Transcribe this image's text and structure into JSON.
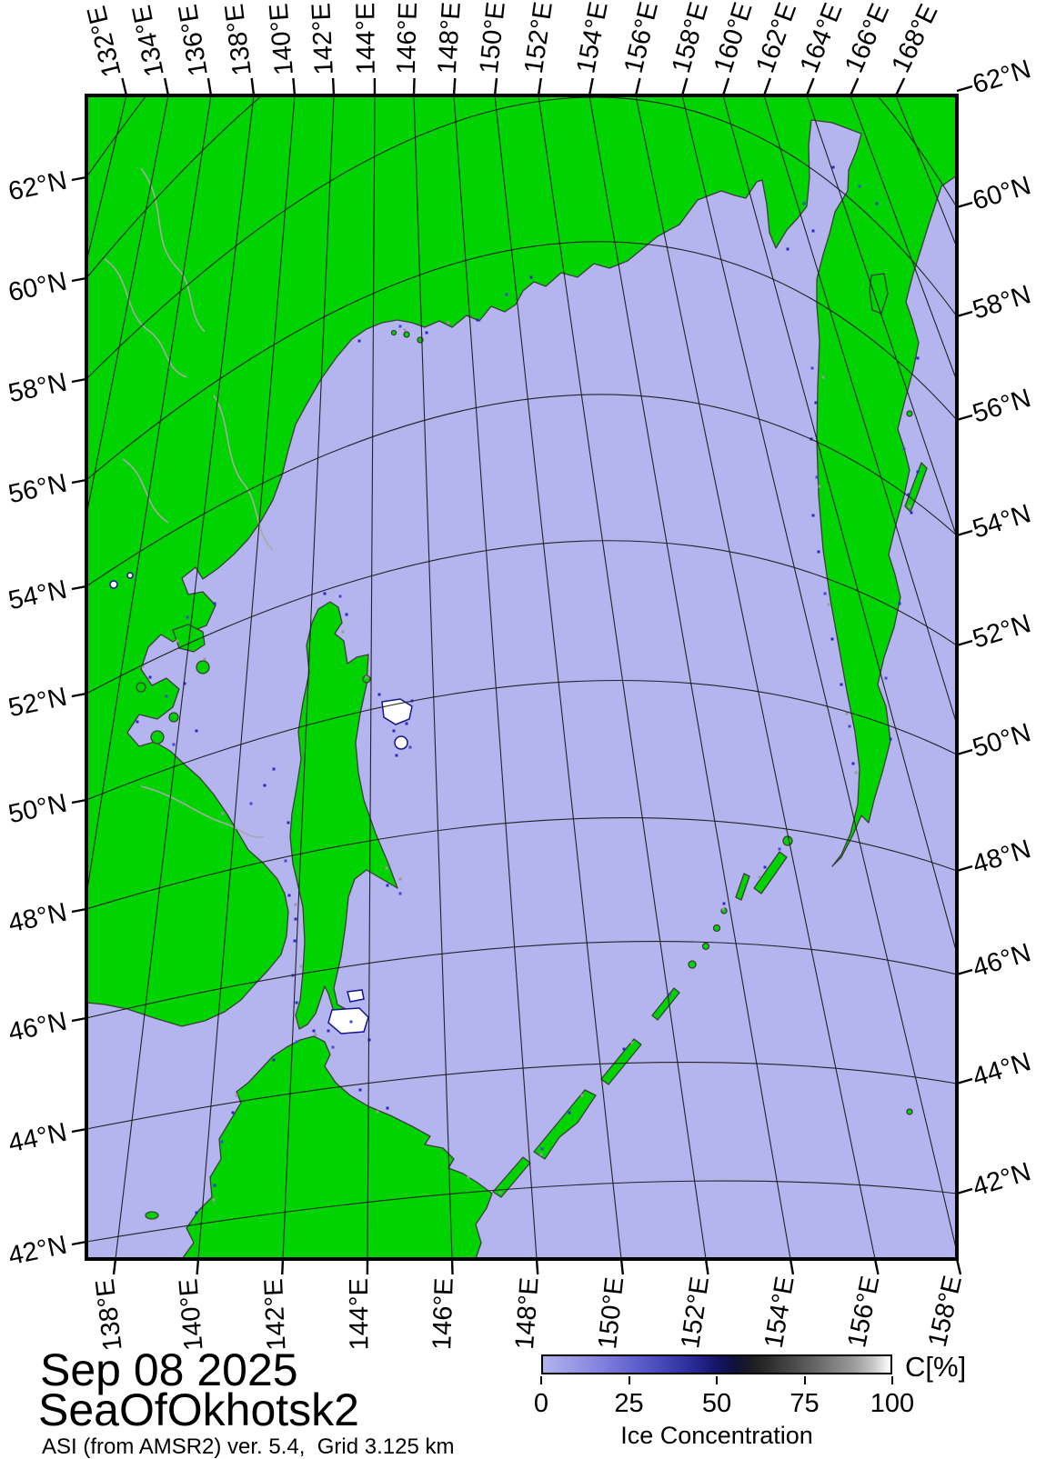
{
  "title_block": {
    "date": "Sep 08 2025",
    "region": "SeaOfOkhotsk2",
    "source": "ASI (from AMSR2) ver. 5.4,  Grid 3.125 km"
  },
  "axes": {
    "top_longitude_labels": [
      "132°E",
      "134°E",
      "136°E",
      "138°E",
      "140°E",
      "142°E",
      "144°E",
      "146°E",
      "148°E",
      "150°E",
      "152°E",
      "154°E",
      "156°E",
      "158°E",
      "160°E",
      "162°E",
      "164°E",
      "166°E",
      "168°E"
    ],
    "bottom_longitude_labels": [
      "138°E",
      "140°E",
      "142°E",
      "144°E",
      "146°E",
      "148°E",
      "150°E",
      "152°E",
      "154°E",
      "156°E",
      "158°E"
    ],
    "left_latitude_labels": [
      "62°N",
      "60°N",
      "58°N",
      "56°N",
      "54°N",
      "52°N",
      "50°N",
      "48°N",
      "46°N",
      "44°N",
      "42°N"
    ],
    "right_latitude_labels": [
      "62°N",
      "60°N",
      "58°N",
      "56°N",
      "54°N",
      "52°N",
      "50°N",
      "48°N",
      "46°N",
      "44°N",
      "42°N"
    ]
  },
  "colorbar": {
    "tick_labels": [
      "0",
      "25",
      "50",
      "75",
      "100"
    ],
    "axis_label": "Ice Concentration",
    "unit_label": "C[%]",
    "gradient_stops": [
      "#b2b2ee",
      "#a4a4ea",
      "#9595e5",
      "#8686e0",
      "#7676d9",
      "#6666d0",
      "#5555c5",
      "#4444b6",
      "#3434a3",
      "#24248c",
      "#141467",
      "#10103c",
      "#1c1c22",
      "#2e2e2e",
      "#424242",
      "#575757",
      "#6d6d6d",
      "#858585",
      "#9e9e9e",
      "#c6c6c6",
      "#ffffff"
    ]
  },
  "map": {
    "sea_color": "#b4b4ee",
    "land_color": "#00d300",
    "coast_artifact_blue": "#2a2ac8",
    "coast_artifact_gray": "#9a9a9a"
  }
}
